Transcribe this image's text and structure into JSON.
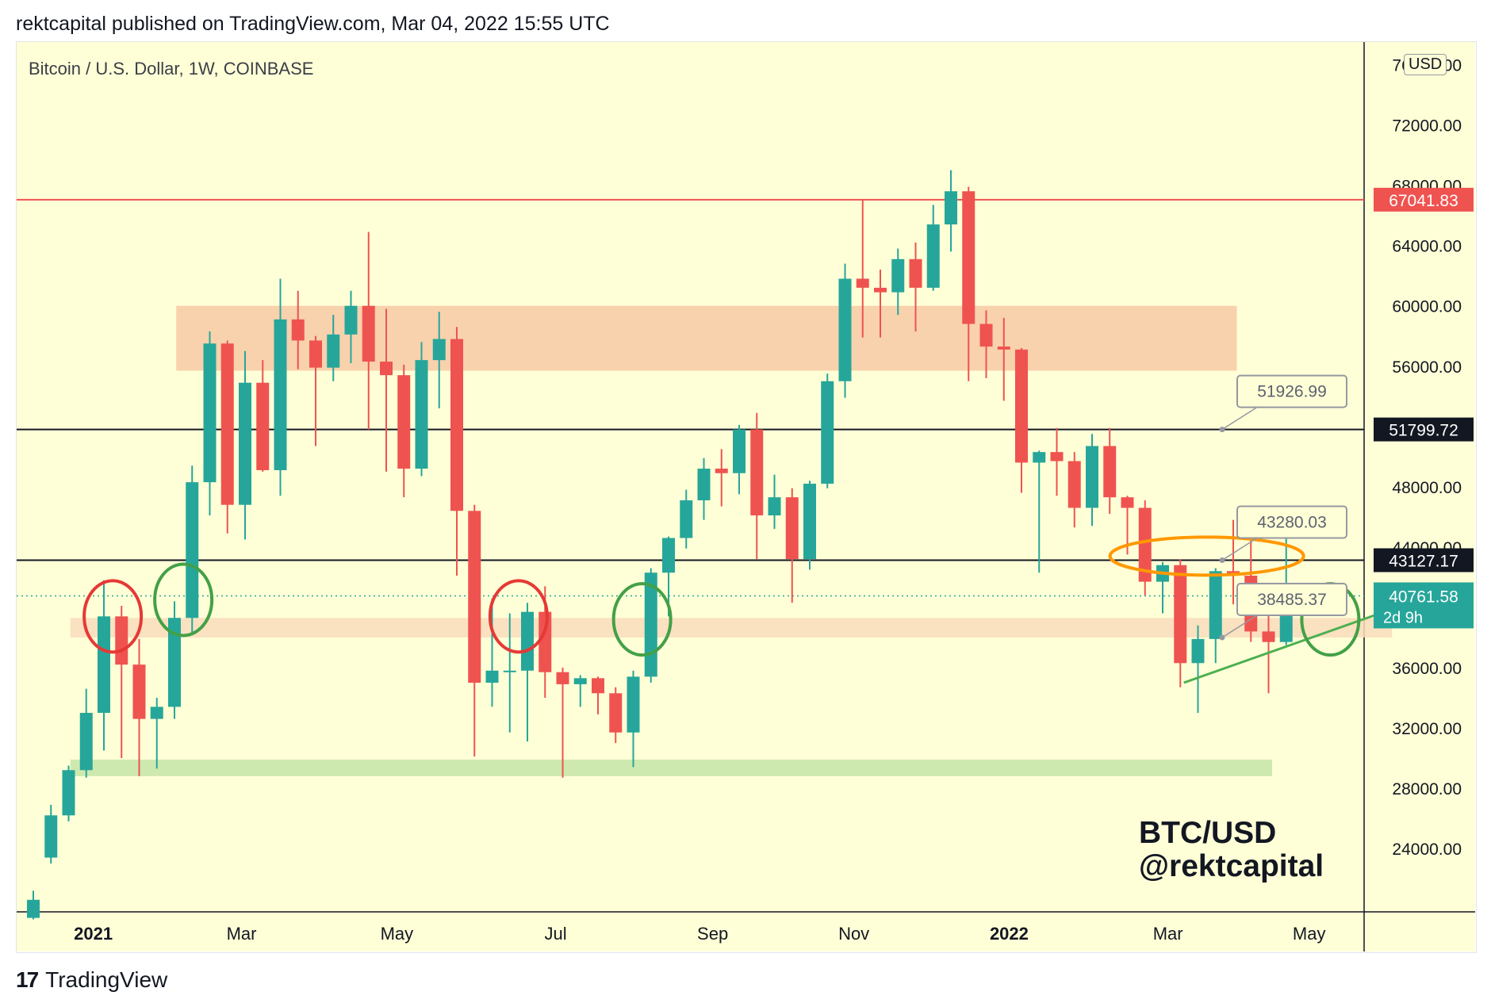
{
  "header": {
    "published": "rektcapital published on TradingView.com, Mar 04, 2022 15:55 UTC"
  },
  "symbol": {
    "title": "Bitcoin / U.S. Dollar, 1W, COINBASE",
    "currency": "USD"
  },
  "watermark": {
    "line1": "BTC/USD",
    "line2": "@rektcapital"
  },
  "footer": {
    "logo": "17",
    "brand": "TradingView"
  },
  "colors": {
    "background": "#ffffd7",
    "up": "#26a69a",
    "down": "#ef5350",
    "resistance_zone": "#f7c9a6",
    "support_zone": "#c5e5a8",
    "mid_zone": "#f9dcbc",
    "red_line": "#ef5350",
    "black_line": "#131722",
    "trendline": "#4caf50",
    "circle_red": "#e53935",
    "circle_green": "#43a047",
    "circle_orange": "#ff9800"
  },
  "chart_data": {
    "type": "candlestick",
    "ylim": [
      19800,
      77500
    ],
    "x_ticks": [
      {
        "label": "2021",
        "bold": true,
        "i": 3.4
      },
      {
        "label": "Mar",
        "bold": false,
        "i": 11.8
      },
      {
        "label": "May",
        "bold": false,
        "i": 20.6
      },
      {
        "label": "Jul",
        "bold": false,
        "i": 29.6
      },
      {
        "label": "Sep",
        "bold": false,
        "i": 38.5
      },
      {
        "label": "Nov",
        "bold": false,
        "i": 46.5
      },
      {
        "label": "2022",
        "bold": true,
        "i": 55.3
      },
      {
        "label": "Mar",
        "bold": false,
        "i": 64.3
      },
      {
        "label": "May",
        "bold": false,
        "i": 72.3
      }
    ],
    "y_ticks": [
      76000,
      72000,
      68000,
      64000,
      60000,
      56000,
      52000,
      48000,
      44000,
      36000,
      32000,
      28000,
      24000
    ],
    "y_tick_labels": [
      "76000.00",
      "72000.00",
      "68000.00",
      "64000.00",
      "60000.00",
      "56000.00",
      "52000.00",
      "48000.00",
      "44000.00",
      "36000.00",
      "32000.00",
      "28000.00",
      "24000.00"
    ],
    "candles": [
      [
        0,
        19400,
        20600,
        19300,
        21200
      ],
      [
        1,
        23400,
        26200,
        23000,
        26900
      ],
      [
        2,
        26200,
        29200,
        25800,
        29500
      ],
      [
        3,
        29200,
        33000,
        28700,
        34600
      ],
      [
        4,
        33000,
        39400,
        30500,
        41800
      ],
      [
        5,
        39400,
        36200,
        30000,
        40100
      ],
      [
        6,
        36200,
        32600,
        28800,
        37900
      ],
      [
        7,
        32600,
        33400,
        29300,
        34000
      ],
      [
        8,
        33400,
        39300,
        32600,
        40400
      ],
      [
        9,
        39300,
        48300,
        38200,
        49400
      ],
      [
        10,
        48300,
        57500,
        46100,
        58300
      ],
      [
        11,
        57500,
        46800,
        44900,
        57700
      ],
      [
        12,
        46800,
        54900,
        44500,
        57000
      ],
      [
        13,
        54900,
        49100,
        49000,
        56400
      ],
      [
        14,
        49100,
        59100,
        47400,
        61800
      ],
      [
        15,
        59100,
        57700,
        55800,
        61000
      ],
      [
        16,
        57700,
        55900,
        50700,
        58000
      ],
      [
        17,
        55900,
        58100,
        55000,
        59400
      ],
      [
        18,
        58100,
        60000,
        56200,
        61000
      ],
      [
        19,
        60000,
        56300,
        51800,
        64900
      ],
      [
        20,
        56300,
        55400,
        49000,
        59800
      ],
      [
        21,
        55400,
        49200,
        47300,
        56100
      ],
      [
        22,
        49200,
        56400,
        48700,
        57600
      ],
      [
        23,
        56400,
        57800,
        53200,
        59600
      ],
      [
        24,
        57800,
        46400,
        42100,
        58600
      ],
      [
        25,
        46400,
        35000,
        30100,
        46800
      ],
      [
        26,
        35000,
        35800,
        33400,
        40600
      ],
      [
        27,
        35800,
        35800,
        31700,
        39600
      ],
      [
        28,
        35800,
        39700,
        31100,
        40300
      ],
      [
        29,
        39700,
        35700,
        34000,
        41400
      ],
      [
        30,
        35700,
        34900,
        28700,
        36000
      ],
      [
        31,
        34900,
        35300,
        33400,
        35500
      ],
      [
        32,
        35300,
        34300,
        32900,
        35400
      ],
      [
        33,
        34300,
        31700,
        31000,
        34700
      ],
      [
        34,
        31700,
        35400,
        29400,
        35800
      ],
      [
        35,
        35400,
        42300,
        35000,
        42600
      ],
      [
        36,
        42300,
        44600,
        39400,
        44700
      ],
      [
        37,
        44600,
        47100,
        43900,
        47800
      ],
      [
        38,
        47100,
        49200,
        45800,
        49900
      ],
      [
        39,
        49200,
        48900,
        46700,
        50500
      ],
      [
        40,
        48900,
        51800,
        47500,
        52100
      ],
      [
        41,
        51800,
        46100,
        43200,
        52900
      ],
      [
        42,
        46100,
        47300,
        45200,
        48800
      ],
      [
        43,
        47300,
        43200,
        40300,
        47900
      ],
      [
        44,
        43200,
        48200,
        42500,
        48400
      ],
      [
        45,
        48200,
        55000,
        47900,
        55500
      ],
      [
        46,
        55000,
        61800,
        53900,
        62800
      ],
      [
        47,
        61800,
        61200,
        57900,
        67000
      ],
      [
        48,
        61200,
        60900,
        57900,
        62400
      ],
      [
        49,
        60900,
        63100,
        59400,
        63800
      ],
      [
        50,
        63100,
        61200,
        58300,
        64200
      ],
      [
        51,
        61200,
        65400,
        61000,
        66700
      ],
      [
        52,
        65400,
        67600,
        63600,
        69000
      ],
      [
        53,
        67600,
        58800,
        55000,
        67900
      ],
      [
        54,
        58800,
        57300,
        55200,
        59700
      ],
      [
        55,
        57300,
        57100,
        53700,
        59200
      ],
      [
        56,
        57100,
        49600,
        47600,
        57200
      ],
      [
        57,
        49600,
        50300,
        42300,
        50400
      ],
      [
        58,
        50300,
        49700,
        47400,
        51900
      ],
      [
        59,
        49700,
        46600,
        45300,
        50300
      ],
      [
        60,
        46600,
        50700,
        45400,
        51500
      ],
      [
        61,
        50700,
        47300,
        46200,
        51900
      ],
      [
        62,
        47300,
        46600,
        43500,
        47400
      ],
      [
        63,
        46600,
        41700,
        40800,
        47100
      ],
      [
        64,
        41700,
        42800,
        39600,
        43000
      ],
      [
        65,
        42800,
        36300,
        34700,
        43200
      ],
      [
        66,
        36300,
        37900,
        33000,
        38800
      ],
      [
        67,
        37900,
        42400,
        36300,
        42600
      ],
      [
        68,
        42400,
        42100,
        40200,
        45800
      ],
      [
        69,
        42100,
        38400,
        37700,
        45000
      ],
      [
        70,
        38400,
        37700,
        34300,
        39800
      ],
      [
        71,
        37700,
        40760,
        37500,
        45400
      ]
    ],
    "zones": [
      {
        "name": "resistance-zone",
        "from": 55700,
        "to": 60000,
        "x0": 8.1,
        "x1": 68.2
      },
      {
        "name": "mid-zone",
        "from": 38000,
        "to": 39300,
        "x0": 2.1,
        "x1": 77
      },
      {
        "name": "support-zone",
        "from": 28800,
        "to": 29900,
        "x0": 2.1,
        "x1": 70.2
      }
    ],
    "hlines": [
      {
        "name": "ath-line",
        "value": 67041.83,
        "color": "#ef5350",
        "label": "67041.83",
        "label_bg": "#ef5350",
        "label_color": "#ffffff"
      },
      {
        "name": "resistance-line",
        "value": 51799.72,
        "color": "#131722",
        "label": "51799.72",
        "label_bg": "#131722",
        "label_color": "#ffffff"
      },
      {
        "name": "support-line",
        "value": 43127.17,
        "color": "#131722",
        "label": "43127.17",
        "label_bg": "#131722",
        "label_color": "#ffffff"
      }
    ],
    "current_price": {
      "value": 40761.58,
      "label": "40761.58",
      "sublabel": "2d 9h",
      "bg": "#26a69a",
      "color": "#ffffff"
    },
    "price_callouts": [
      {
        "label": "51926.99",
        "value": 51926.99,
        "at": 51800
      },
      {
        "label": "43280.03",
        "value": 43280.03,
        "at": 43127
      },
      {
        "label": "38485.37",
        "value": 38485.37,
        "at": 38000
      }
    ],
    "trendline": {
      "from": [
        65.2,
        35000
      ],
      "to": [
        76.8,
        39800
      ]
    },
    "circles": [
      {
        "color": "red",
        "i": 4.5,
        "value": 39400
      },
      {
        "color": "green",
        "i": 8.5,
        "value": 40500
      },
      {
        "color": "red",
        "i": 27.5,
        "value": 39400
      },
      {
        "color": "green",
        "i": 34.5,
        "value": 39200
      },
      {
        "color": "orange",
        "i": 66.5,
        "value": 43400
      },
      {
        "color": "green",
        "i": 73.5,
        "value": 39200
      }
    ]
  }
}
